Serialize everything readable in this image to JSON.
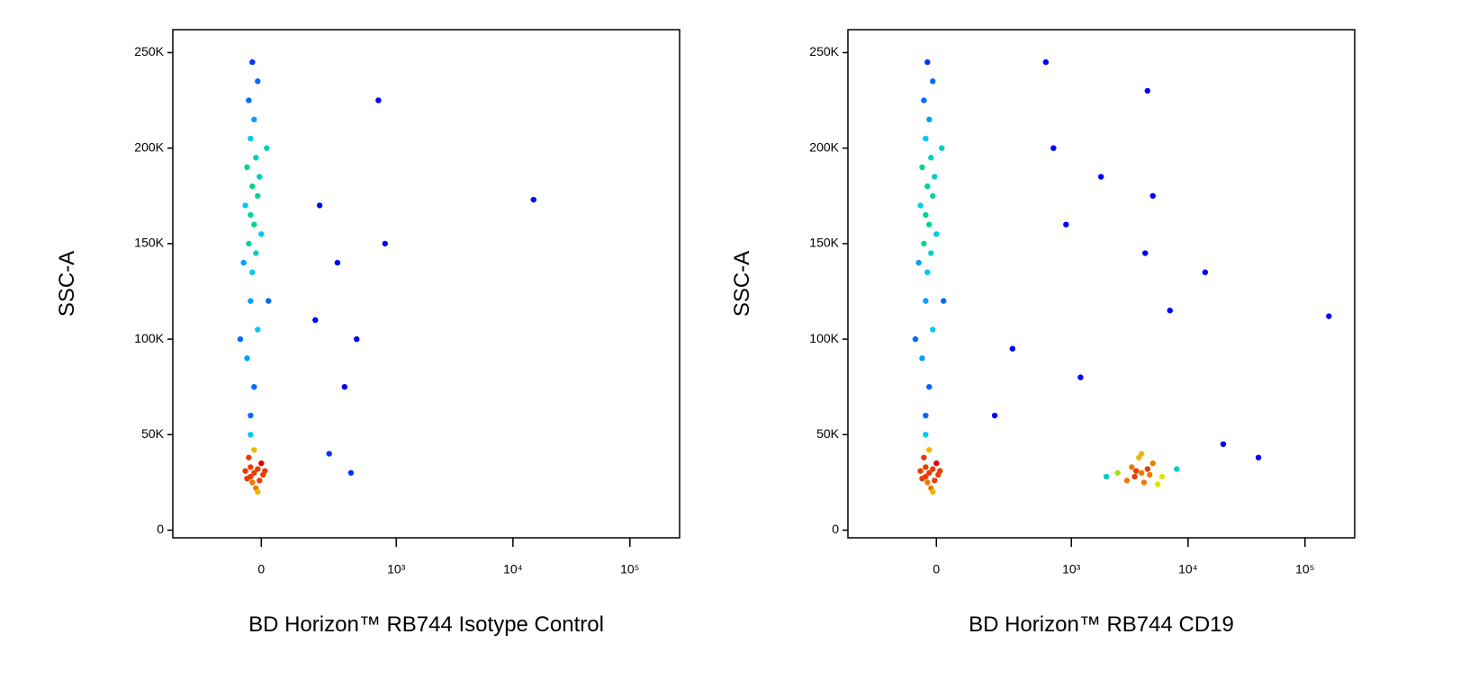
{
  "chart_data": [
    {
      "type": "scatter",
      "ylabel": "SSC-A",
      "xlabel": "BD Horizon™ RB744 Isotype Control",
      "xscale": "biexponential",
      "xlim": [
        -390,
        266000
      ],
      "ylim": [
        -4000,
        262000
      ],
      "xticks": [
        0,
        {
          "value": 1000,
          "label": "10³"
        },
        {
          "value": 10000,
          "label": "10⁴"
        },
        {
          "value": 100000,
          "label": "10⁵"
        }
      ],
      "yticks": [
        0,
        {
          "value": 50000,
          "label": "50K"
        },
        {
          "value": 100000,
          "label": "100K"
        },
        {
          "value": 150000,
          "label": "150K"
        },
        {
          "value": 200000,
          "label": "200K"
        },
        {
          "value": 250000,
          "label": "250K"
        }
      ],
      "x": [
        -20,
        -30,
        -10,
        -25,
        0,
        -40,
        -15,
        5,
        -35,
        -20,
        -5,
        -30,
        10,
        -45,
        -10,
        -30,
        -20,
        -40,
        -10,
        -30,
        -25,
        -15,
        -35,
        -20,
        -30,
        -10,
        -25,
        -40,
        -15,
        -30,
        -20,
        -35,
        -10,
        -25,
        -50,
        0,
        -5,
        -45,
        20,
        -60,
        15,
        -30,
        200,
        300,
        250,
        350,
        450,
        700,
        800,
        15000,
        180,
        400
      ],
      "y": [
        30000,
        28000,
        32000,
        25000,
        35000,
        27000,
        22000,
        29000,
        38000,
        42000,
        26000,
        33000,
        31000,
        31000,
        20000,
        60000,
        75000,
        90000,
        105000,
        120000,
        135000,
        145000,
        150000,
        160000,
        165000,
        175000,
        180000,
        190000,
        195000,
        205000,
        215000,
        225000,
        235000,
        245000,
        140000,
        155000,
        185000,
        170000,
        120000,
        100000,
        200000,
        50000,
        170000,
        140000,
        40000,
        75000,
        100000,
        225000,
        150000,
        173000,
        110000,
        30000
      ]
    },
    {
      "type": "scatter",
      "ylabel": "SSC-A",
      "xlabel": "BD Horizon™ RB744 CD19",
      "xscale": "biexponential",
      "xlim": [
        -390,
        266000
      ],
      "ylim": [
        -4000,
        262000
      ],
      "xticks": [
        0,
        {
          "value": 1000,
          "label": "10³"
        },
        {
          "value": 10000,
          "label": "10⁴"
        },
        {
          "value": 100000,
          "label": "10⁵"
        }
      ],
      "yticks": [
        0,
        {
          "value": 50000,
          "label": "50K"
        },
        {
          "value": 100000,
          "label": "100K"
        },
        {
          "value": 150000,
          "label": "150K"
        },
        {
          "value": 200000,
          "label": "200K"
        },
        {
          "value": 250000,
          "label": "250K"
        }
      ],
      "x": [
        -20,
        -30,
        -10,
        -25,
        0,
        -40,
        -15,
        5,
        -35,
        -20,
        -5,
        -30,
        10,
        -45,
        -10,
        -30,
        -20,
        -40,
        -10,
        -30,
        -25,
        -15,
        -35,
        -20,
        -30,
        -10,
        -25,
        -40,
        -15,
        -30,
        -20,
        -35,
        -10,
        -25,
        -50,
        0,
        -5,
        -45,
        20,
        -60,
        15,
        -30,
        4000,
        3500,
        4500,
        3000,
        5000,
        4200,
        3800,
        2500,
        6000,
        4000,
        3300,
        5500,
        2000,
        8000,
        4700,
        3600,
        600,
        700,
        1800,
        4500,
        5000,
        4300,
        7000,
        14000,
        160000,
        900,
        1200,
        20000,
        40000,
        300,
        200
      ],
      "y": [
        30000,
        28000,
        32000,
        25000,
        35000,
        27000,
        22000,
        29000,
        38000,
        42000,
        26000,
        33000,
        31000,
        31000,
        20000,
        60000,
        75000,
        90000,
        105000,
        120000,
        135000,
        145000,
        150000,
        160000,
        165000,
        175000,
        180000,
        190000,
        195000,
        205000,
        215000,
        225000,
        235000,
        245000,
        140000,
        155000,
        185000,
        170000,
        120000,
        100000,
        200000,
        50000,
        30000,
        28000,
        32000,
        26000,
        35000,
        25000,
        38000,
        30000,
        28000,
        40000,
        33000,
        24000,
        28000,
        32000,
        29000,
        31000,
        245000,
        200000,
        185000,
        230000,
        175000,
        145000,
        115000,
        135000,
        112000,
        160000,
        80000,
        45000,
        38000,
        95000,
        60000
      ]
    }
  ]
}
